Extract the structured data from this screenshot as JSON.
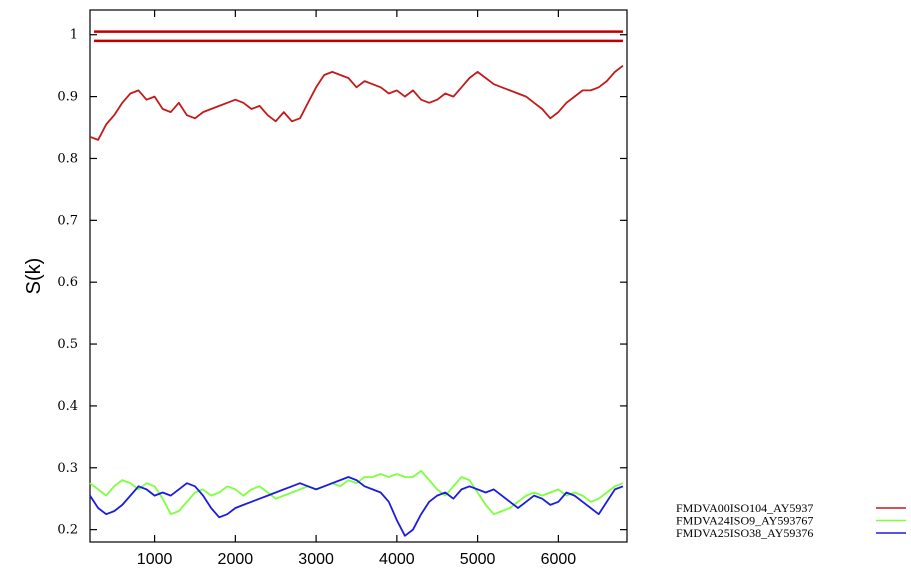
{
  "chart_data": {
    "type": "line",
    "title": "",
    "xlabel": "",
    "ylabel": "S(k)",
    "xlim": [
      200,
      6850
    ],
    "ylim": [
      0.18,
      1.04
    ],
    "xticks": [
      1000,
      2000,
      3000,
      4000,
      5000,
      6000
    ],
    "xtick_labels": [
      "1000",
      "2000",
      "3000",
      "4000",
      "5000",
      "6000"
    ],
    "yticks": [
      0.2,
      0.3,
      0.4,
      0.5,
      0.6,
      0.7,
      0.8,
      0.9,
      1
    ],
    "ytick_labels": [
      "0.2",
      "0.3",
      "0.4",
      "0.5",
      "0.6",
      "0.7",
      "0.8",
      "0.9",
      "1"
    ],
    "grid": false,
    "legend_position": "bottom-right",
    "reference_lines": [
      {
        "y": 1.005,
        "color": "#c00000"
      },
      {
        "y": 0.99,
        "color": "#c00000"
      }
    ],
    "series": [
      {
        "name": "FMDVA00ISO104_AY5937",
        "color": "#c41a1a",
        "x": [
          200,
          300,
          400,
          500,
          600,
          700,
          800,
          900,
          1000,
          1100,
          1200,
          1300,
          1400,
          1500,
          1600,
          1700,
          1800,
          1900,
          2000,
          2100,
          2200,
          2300,
          2400,
          2500,
          2600,
          2700,
          2800,
          2900,
          3000,
          3100,
          3200,
          3300,
          3400,
          3500,
          3600,
          3700,
          3800,
          3900,
          4000,
          4100,
          4200,
          4300,
          4400,
          4500,
          4600,
          4700,
          4800,
          4900,
          5000,
          5100,
          5200,
          5300,
          5400,
          5500,
          5600,
          5700,
          5800,
          5900,
          6000,
          6100,
          6200,
          6300,
          6400,
          6500,
          6600,
          6700,
          6800
        ],
        "y": [
          0.835,
          0.83,
          0.855,
          0.87,
          0.89,
          0.905,
          0.91,
          0.895,
          0.9,
          0.88,
          0.875,
          0.89,
          0.87,
          0.865,
          0.875,
          0.88,
          0.885,
          0.89,
          0.895,
          0.89,
          0.88,
          0.885,
          0.87,
          0.86,
          0.875,
          0.86,
          0.865,
          0.89,
          0.915,
          0.935,
          0.94,
          0.935,
          0.93,
          0.915,
          0.925,
          0.92,
          0.915,
          0.905,
          0.91,
          0.9,
          0.91,
          0.895,
          0.89,
          0.895,
          0.905,
          0.9,
          0.915,
          0.93,
          0.94,
          0.93,
          0.92,
          0.915,
          0.91,
          0.905,
          0.9,
          0.89,
          0.88,
          0.865,
          0.875,
          0.89,
          0.9,
          0.91,
          0.91,
          0.915,
          0.925,
          0.94,
          0.95
        ]
      },
      {
        "name": "FMDVA24ISO9_AY593767",
        "color": "#7fff3f",
        "x": [
          200,
          300,
          400,
          500,
          600,
          700,
          800,
          900,
          1000,
          1100,
          1200,
          1300,
          1400,
          1500,
          1600,
          1700,
          1800,
          1900,
          2000,
          2100,
          2200,
          2300,
          2400,
          2500,
          2600,
          2700,
          2800,
          2900,
          3000,
          3100,
          3200,
          3300,
          3400,
          3500,
          3600,
          3700,
          3800,
          3900,
          4000,
          4100,
          4200,
          4300,
          4400,
          4500,
          4600,
          4700,
          4800,
          4900,
          5000,
          5100,
          5200,
          5300,
          5400,
          5500,
          5600,
          5700,
          5800,
          5900,
          6000,
          6100,
          6200,
          6300,
          6400,
          6500,
          6600,
          6700,
          6800
        ],
        "y": [
          0.275,
          0.265,
          0.255,
          0.27,
          0.28,
          0.275,
          0.265,
          0.275,
          0.27,
          0.25,
          0.225,
          0.23,
          0.245,
          0.26,
          0.265,
          0.255,
          0.26,
          0.27,
          0.265,
          0.255,
          0.265,
          0.27,
          0.26,
          0.25,
          0.255,
          0.26,
          0.265,
          0.27,
          0.265,
          0.27,
          0.275,
          0.27,
          0.28,
          0.275,
          0.285,
          0.285,
          0.29,
          0.285,
          0.29,
          0.285,
          0.285,
          0.295,
          0.28,
          0.265,
          0.255,
          0.27,
          0.285,
          0.28,
          0.26,
          0.24,
          0.225,
          0.23,
          0.235,
          0.245,
          0.255,
          0.26,
          0.255,
          0.26,
          0.265,
          0.255,
          0.26,
          0.255,
          0.245,
          0.25,
          0.26,
          0.27,
          0.275
        ]
      },
      {
        "name": "FMDVA25ISO38_AY59376",
        "color": "#1c1ce0",
        "x": [
          200,
          300,
          400,
          500,
          600,
          700,
          800,
          900,
          1000,
          1100,
          1200,
          1300,
          1400,
          1500,
          1600,
          1700,
          1800,
          1900,
          2000,
          2100,
          2200,
          2300,
          2400,
          2500,
          2600,
          2700,
          2800,
          2900,
          3000,
          3100,
          3200,
          3300,
          3400,
          3500,
          3600,
          3700,
          3800,
          3900,
          4000,
          4100,
          4200,
          4300,
          4400,
          4500,
          4600,
          4700,
          4800,
          4900,
          5000,
          5100,
          5200,
          5300,
          5400,
          5500,
          5600,
          5700,
          5800,
          5900,
          6000,
          6100,
          6200,
          6300,
          6400,
          6500,
          6600,
          6700,
          6800
        ],
        "y": [
          0.255,
          0.235,
          0.225,
          0.23,
          0.24,
          0.255,
          0.27,
          0.265,
          0.255,
          0.26,
          0.255,
          0.265,
          0.275,
          0.27,
          0.255,
          0.235,
          0.22,
          0.225,
          0.235,
          0.24,
          0.245,
          0.25,
          0.255,
          0.26,
          0.265,
          0.27,
          0.275,
          0.27,
          0.265,
          0.27,
          0.275,
          0.28,
          0.285,
          0.28,
          0.27,
          0.265,
          0.26,
          0.245,
          0.215,
          0.19,
          0.2,
          0.225,
          0.245,
          0.255,
          0.26,
          0.25,
          0.265,
          0.27,
          0.265,
          0.26,
          0.265,
          0.255,
          0.245,
          0.235,
          0.245,
          0.255,
          0.25,
          0.24,
          0.245,
          0.26,
          0.255,
          0.245,
          0.235,
          0.225,
          0.245,
          0.265,
          0.27
        ]
      }
    ]
  }
}
